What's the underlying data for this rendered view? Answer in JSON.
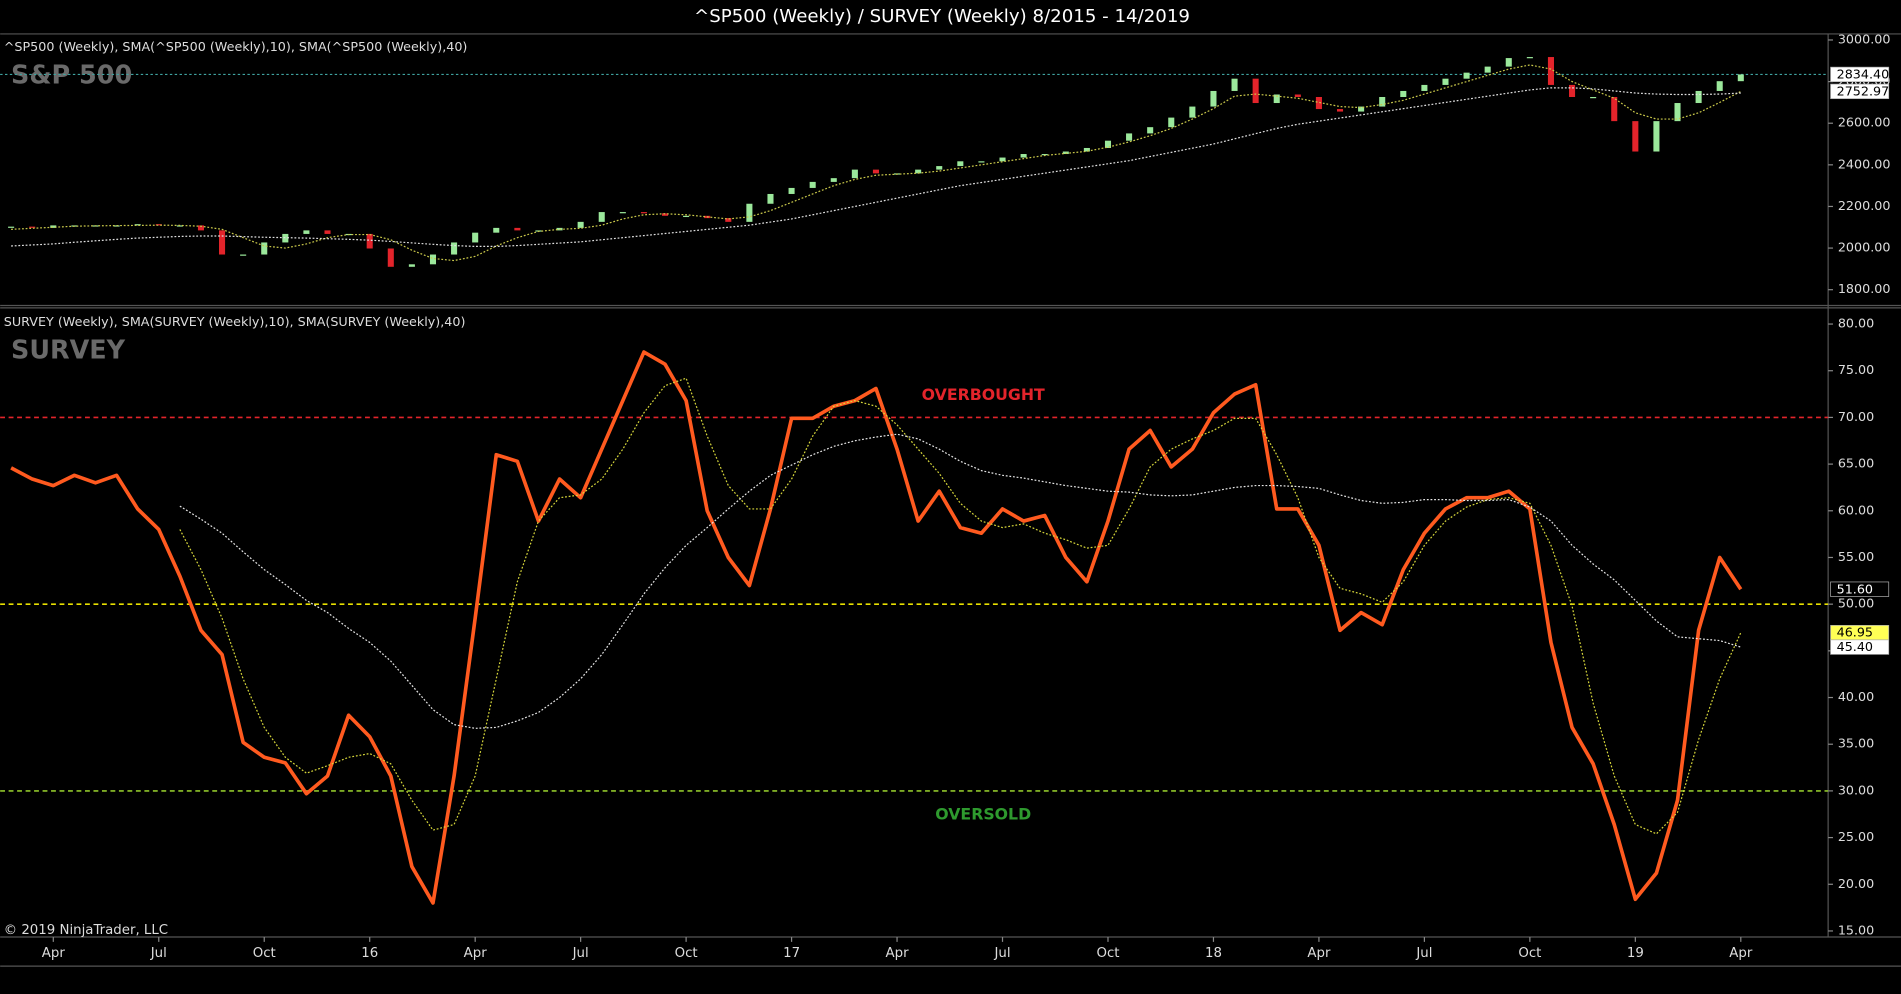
{
  "title": "^SP500 (Weekly) / SURVEY (Weekly)  8/2015 - 14/2019",
  "copyright": "© 2019 NinjaTrader, LLC",
  "chart_data": [
    {
      "type": "candlestick",
      "legend": "^SP500 (Weekly),  SMA(^SP500 (Weekly),10),  SMA(^SP500 (Weekly),40)",
      "watermark": "S&P 500",
      "x": [
        2015.15,
        2015.2,
        2015.25,
        2015.3,
        2015.35,
        2015.4,
        2015.45,
        2015.5,
        2015.55,
        2015.6,
        2015.65,
        2015.7,
        2015.75,
        2015.8,
        2015.85,
        2015.9,
        2015.95,
        2016,
        2016.05,
        2016.1,
        2016.15,
        2016.2,
        2016.25,
        2016.3,
        2016.35,
        2016.4,
        2016.45,
        2016.5,
        2016.55,
        2016.6,
        2016.65,
        2016.7,
        2016.75,
        2016.8,
        2016.85,
        2016.9,
        2016.95,
        2017,
        2017.05,
        2017.1,
        2017.15,
        2017.2,
        2017.25,
        2017.3,
        2017.35,
        2017.4,
        2017.45,
        2017.5,
        2017.55,
        2017.6,
        2017.65,
        2017.7,
        2017.75,
        2017.8,
        2017.85,
        2017.9,
        2017.95,
        2018,
        2018.05,
        2018.1,
        2018.15,
        2018.2,
        2018.25,
        2018.3,
        2018.35,
        2018.4,
        2018.45,
        2018.5,
        2018.55,
        2018.6,
        2018.65,
        2018.7,
        2018.75,
        2018.8,
        2018.85,
        2018.9,
        2018.95,
        2019,
        2019.05,
        2019.1,
        2019.15,
        2019.2,
        2019.25
      ],
      "xlim": [
        2015.124,
        2019.457
      ],
      "ylim": [
        1730,
        3029
      ],
      "yticks": [
        {
          "value": 1800,
          "label": "1800.00"
        },
        {
          "value": 2000,
          "label": "2000.00"
        },
        {
          "value": 2200,
          "label": "2200.00"
        },
        {
          "value": 2400,
          "label": "2400.00"
        },
        {
          "value": 2600,
          "label": "2600.00"
        },
        {
          "value": 2800,
          "label": "2800.00"
        },
        {
          "value": 3000,
          "label": "3000.00"
        }
      ],
      "last_line_color": "#3fa3a0",
      "series": [
        {
          "style": "candle",
          "up_color": "#9be89b",
          "down_color": "#e3242b",
          "label_fill": "#ffffff",
          "values": [
            2103,
            2097,
            2109,
            2109,
            2109,
            2109,
            2115,
            2109,
            2109,
            2085,
            1969,
            1969,
            2027,
            2068,
            2085,
            2068,
            2068,
            1998,
            1910,
            1922,
            1969,
            2027,
            2074,
            2097,
            2085,
            2085,
            2097,
            2126,
            2173,
            2173,
            2167,
            2155,
            2155,
            2144,
            2126,
            2213,
            2260,
            2289,
            2318,
            2336,
            2377,
            2359,
            2359,
            2377,
            2394,
            2417,
            2417,
            2435,
            2452,
            2452,
            2464,
            2481,
            2516,
            2551,
            2581,
            2627,
            2680,
            2755,
            2814,
            2697,
            2738,
            2726,
            2668,
            2656,
            2680,
            2726,
            2755,
            2784,
            2814,
            2843,
            2872,
            2913,
            2918,
            2784,
            2726,
            2726,
            2610,
            2464,
            2610,
            2697,
            2755,
            2802,
            2834.4
          ],
          "value_labels": {
            "82": "2834.40"
          }
        },
        {
          "style": "dotted",
          "color": "#c9c84a",
          "label_fill": "#ffffff",
          "values": [
            2090,
            2095,
            2100,
            2105,
            2107,
            2108,
            2109,
            2110,
            2109,
            2105,
            2090,
            2050,
            2010,
            2000,
            2020,
            2050,
            2065,
            2065,
            2040,
            1990,
            1950,
            1940,
            1960,
            2010,
            2050,
            2080,
            2090,
            2095,
            2110,
            2140,
            2160,
            2165,
            2160,
            2150,
            2140,
            2150,
            2180,
            2220,
            2260,
            2300,
            2330,
            2350,
            2355,
            2360,
            2370,
            2385,
            2400,
            2415,
            2430,
            2445,
            2455,
            2465,
            2485,
            2510,
            2540,
            2575,
            2620,
            2670,
            2730,
            2740,
            2730,
            2720,
            2700,
            2680,
            2675,
            2690,
            2710,
            2740,
            2770,
            2800,
            2830,
            2860,
            2880,
            2860,
            2800,
            2760,
            2720,
            2650,
            2620,
            2620,
            2650,
            2700,
            2752.97
          ],
          "value_labels": {
            "82": "2752.97"
          }
        },
        {
          "style": "dotted",
          "color": "#e0e0e0",
          "values": [
            2010,
            2015,
            2020,
            2028,
            2035,
            2042,
            2048,
            2052,
            2056,
            2058,
            2058,
            2055,
            2052,
            2050,
            2048,
            2045,
            2042,
            2038,
            2032,
            2025,
            2018,
            2012,
            2008,
            2008,
            2012,
            2018,
            2024,
            2030,
            2040,
            2050,
            2060,
            2070,
            2080,
            2090,
            2100,
            2110,
            2125,
            2140,
            2160,
            2180,
            2200,
            2220,
            2240,
            2260,
            2280,
            2300,
            2315,
            2330,
            2345,
            2360,
            2375,
            2390,
            2405,
            2420,
            2440,
            2460,
            2480,
            2500,
            2525,
            2550,
            2575,
            2595,
            2610,
            2625,
            2640,
            2655,
            2670,
            2685,
            2700,
            2715,
            2730,
            2745,
            2760,
            2770,
            2770,
            2765,
            2755,
            2745,
            2740,
            2738,
            2738,
            2740,
            2745
          ]
        }
      ]
    },
    {
      "type": "line",
      "legend": "SURVEY (Weekly),  SMA(SURVEY (Weekly),10),  SMA(SURVEY (Weekly),40)",
      "watermark": "SURVEY",
      "x": [
        2015.15,
        2015.2,
        2015.25,
        2015.3,
        2015.35,
        2015.4,
        2015.45,
        2015.5,
        2015.55,
        2015.6,
        2015.65,
        2015.7,
        2015.75,
        2015.8,
        2015.85,
        2015.9,
        2015.95,
        2016,
        2016.05,
        2016.1,
        2016.15,
        2016.2,
        2016.25,
        2016.3,
        2016.35,
        2016.4,
        2016.45,
        2016.5,
        2016.55,
        2016.6,
        2016.65,
        2016.7,
        2016.75,
        2016.8,
        2016.85,
        2016.9,
        2016.95,
        2017,
        2017.05,
        2017.1,
        2017.15,
        2017.2,
        2017.25,
        2017.3,
        2017.35,
        2017.4,
        2017.45,
        2017.5,
        2017.55,
        2017.6,
        2017.65,
        2017.7,
        2017.75,
        2017.8,
        2017.85,
        2017.9,
        2017.95,
        2018,
        2018.05,
        2018.1,
        2018.15,
        2018.2,
        2018.25,
        2018.3,
        2018.35,
        2018.4,
        2018.45,
        2018.5,
        2018.55,
        2018.6,
        2018.65,
        2018.7,
        2018.75,
        2018.8,
        2018.85,
        2018.9,
        2018.95,
        2019,
        2019.05,
        2019.1,
        2019.15,
        2019.2,
        2019.25
      ],
      "xlim": [
        2015.124,
        2019.457
      ],
      "xticks": [
        {
          "value": 2015.25,
          "label": "Apr"
        },
        {
          "value": 2015.5,
          "label": "Jul"
        },
        {
          "value": 2015.75,
          "label": "Oct"
        },
        {
          "value": 2016,
          "label": "16"
        },
        {
          "value": 2016.25,
          "label": "Apr"
        },
        {
          "value": 2016.5,
          "label": "Jul"
        },
        {
          "value": 2016.75,
          "label": "Oct"
        },
        {
          "value": 2017,
          "label": "17"
        },
        {
          "value": 2017.25,
          "label": "Apr"
        },
        {
          "value": 2017.5,
          "label": "Jul"
        },
        {
          "value": 2017.75,
          "label": "Oct"
        },
        {
          "value": 2018,
          "label": "18"
        },
        {
          "value": 2018.25,
          "label": "Apr"
        },
        {
          "value": 2018.5,
          "label": "Jul"
        },
        {
          "value": 2018.75,
          "label": "Oct"
        },
        {
          "value": 2019,
          "label": "19"
        },
        {
          "value": 2019.25,
          "label": "Apr"
        }
      ],
      "ylim": [
        14.35,
        81.6
      ],
      "yticks": [
        {
          "value": 15,
          "label": "15.00"
        },
        {
          "value": 20,
          "label": "20.00"
        },
        {
          "value": 25,
          "label": "25.00"
        },
        {
          "value": 30,
          "label": "30.00"
        },
        {
          "value": 35,
          "label": "35.00"
        },
        {
          "value": 40,
          "label": "40.00"
        },
        {
          "value": 45,
          "label": "45.00"
        },
        {
          "value": 50,
          "label": "50.00"
        },
        {
          "value": 55,
          "label": "55.00"
        },
        {
          "value": 60,
          "label": "60.00"
        },
        {
          "value": 65,
          "label": "65.00"
        },
        {
          "value": 70,
          "label": "70.00"
        },
        {
          "value": 75,
          "label": "75.00"
        },
        {
          "value": 80,
          "label": "80.00"
        }
      ],
      "levels": [
        {
          "value": 70,
          "color": "#e3242b",
          "label": "OVERBOUGHT"
        },
        {
          "value": 50,
          "color": "#e8e000"
        },
        {
          "value": 30,
          "color": "#8fc42a",
          "label": "OVERSOLD",
          "label_color": "#2e9a2e"
        }
      ],
      "series": [
        {
          "style": "solid",
          "color": "#ff5a1f",
          "label_fill": "#000000",
          "values": [
            64.6,
            63.4,
            62.7,
            63.8,
            63.0,
            63.8,
            60.2,
            58.0,
            53.0,
            47.2,
            44.6,
            35.2,
            33.6,
            33.0,
            29.7,
            31.6,
            38.1,
            35.8,
            31.6,
            21.9,
            18.0,
            31.6,
            48.5,
            66.0,
            65.3,
            58.9,
            63.4,
            61.4,
            66.6,
            71.8,
            77.0,
            75.7,
            71.8,
            60.0,
            55.0,
            52.0,
            60.2,
            69.9,
            69.9,
            71.2,
            71.8,
            73.1,
            66.6,
            58.9,
            62.1,
            58.2,
            57.6,
            60.2,
            58.9,
            59.5,
            55.0,
            52.4,
            58.9,
            66.6,
            68.6,
            64.7,
            66.6,
            70.5,
            72.5,
            73.5,
            60.2,
            60.2,
            56.3,
            47.2,
            49.1,
            47.8,
            53.7,
            57.6,
            60.2,
            61.4,
            61.4,
            62.1,
            60.2,
            45.9,
            36.8,
            32.9,
            26.4,
            18.4,
            21.2,
            29.0,
            47.2,
            55.0,
            51.6
          ],
          "value_labels": {
            "82": "51.60"
          }
        },
        {
          "style": "dotted",
          "color": "#d6d63a",
          "label_fill": "#ffff55",
          "values": [
            null,
            null,
            null,
            null,
            null,
            null,
            null,
            null,
            58.0,
            53.7,
            48.5,
            42,
            36.8,
            33.6,
            31.9,
            32.7,
            33.6,
            34,
            32.9,
            29,
            25.8,
            26.4,
            31.6,
            42,
            52.4,
            58.9,
            61.4,
            61.7,
            63.4,
            66.6,
            70.5,
            73.4,
            74.2,
            68,
            62.7,
            60.2,
            60.2,
            63.4,
            68,
            71.2,
            71.8,
            71.2,
            69.2,
            66.6,
            64,
            60.8,
            58.9,
            58.2,
            58.6,
            57.6,
            56.9,
            56,
            56.3,
            60.2,
            64.7,
            66.6,
            67.7,
            68.6,
            69.9,
            69.9,
            66,
            61.4,
            55,
            51.7,
            51.1,
            50.2,
            52.4,
            56.3,
            58.9,
            60.4,
            61.2,
            61.4,
            60.8,
            56.3,
            49.8,
            39.4,
            31.6,
            26.4,
            25.4,
            27.7,
            35.5,
            42,
            46.95
          ],
          "value_labels": {
            "82": "46.95"
          }
        },
        {
          "style": "dotted",
          "color": "#e6e6e6",
          "label_fill": "#ffffff",
          "values": [
            null,
            null,
            null,
            null,
            null,
            null,
            null,
            null,
            60.5,
            59.1,
            57.6,
            55.6,
            53.7,
            52.1,
            50.4,
            49.1,
            47.4,
            45.9,
            43.9,
            41.3,
            38.7,
            37.1,
            36.7,
            36.8,
            37.5,
            38.4,
            40,
            42,
            44.6,
            47.8,
            51.1,
            53.9,
            56.3,
            58.2,
            60.2,
            62.1,
            63.8,
            64.9,
            66,
            66.9,
            67.5,
            67.9,
            68.2,
            67.7,
            66.6,
            65.3,
            64.3,
            63.8,
            63.5,
            63.1,
            62.7,
            62.4,
            62.1,
            62,
            61.7,
            61.6,
            61.7,
            62.1,
            62.5,
            62.7,
            62.7,
            62.6,
            62.4,
            61.7,
            61.1,
            60.8,
            60.9,
            61.2,
            61.2,
            61.1,
            61.1,
            61.2,
            60.4,
            58.9,
            56.3,
            54.3,
            52.6,
            50.4,
            48.2,
            46.5,
            46.3,
            46.1,
            45.4
          ],
          "value_labels": {
            "82": "45.40"
          }
        }
      ]
    }
  ]
}
